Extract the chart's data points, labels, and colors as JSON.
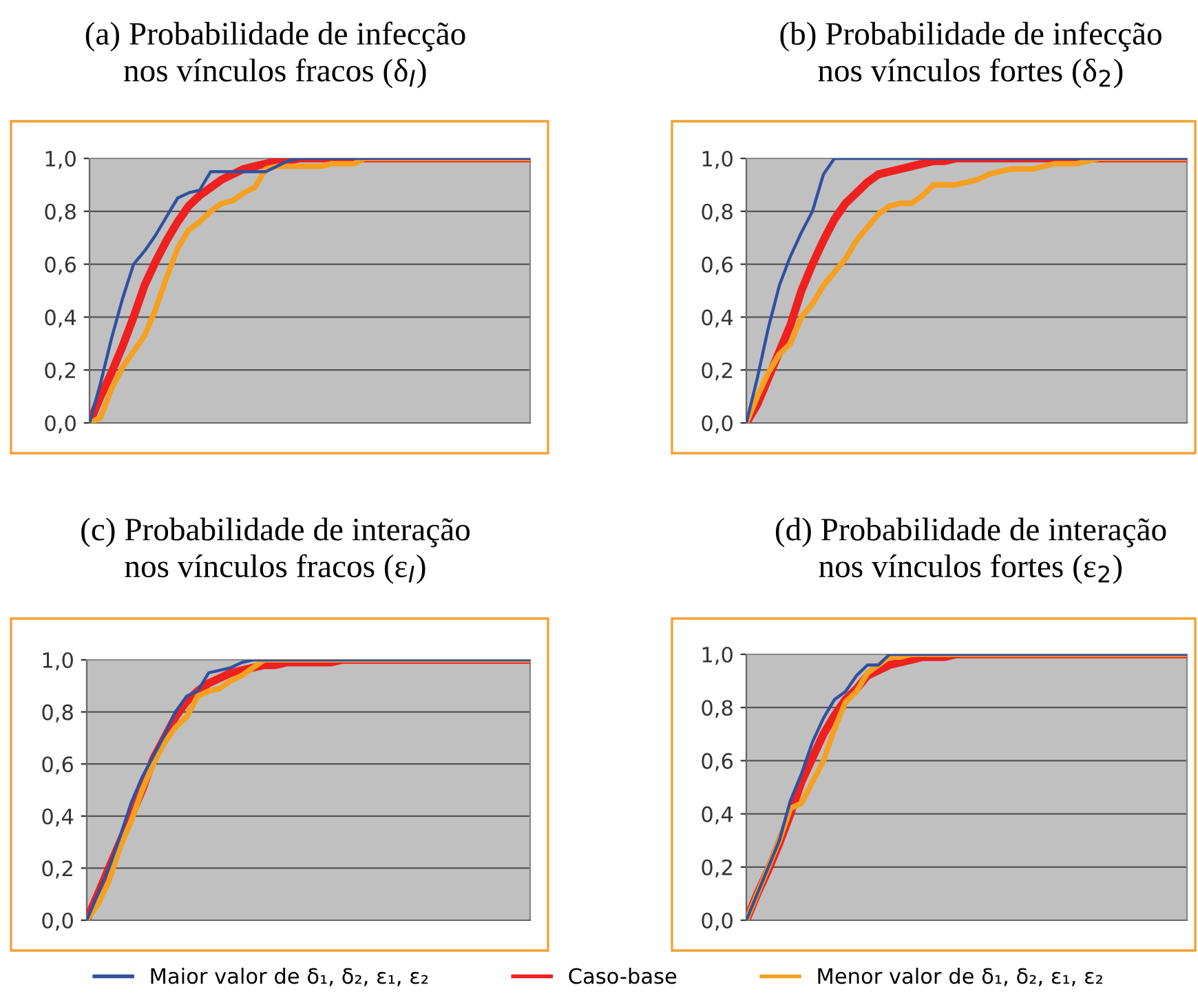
{
  "chart_data": [
    {
      "type": "line",
      "title": "(a) Probabilidade de infecção\nnos vínculos fracos (δ$_{I}$)",
      "categories": [
        null,
        null,
        null,
        null,
        null,
        null,
        null,
        null,
        null,
        null,
        null,
        null,
        null,
        null,
        null,
        null,
        null,
        null,
        null,
        null,
        null,
        null,
        null,
        null,
        null,
        null,
        null,
        null,
        null,
        null,
        null,
        null,
        null,
        null,
        null,
        null,
        null,
        null,
        null,
        null,
        null
      ],
      "ylim": [
        0,
        1
      ],
      "yticks": [
        {
          "value": 0,
          "label": "0,0"
        },
        {
          "value": 0.2,
          "label": "0,2"
        },
        {
          "value": 0.4,
          "label": "0,4"
        },
        {
          "value": 0.6,
          "label": "0,6"
        },
        {
          "value": 0.8,
          "label": "0,8"
        },
        {
          "value": 1,
          "label": "1,0"
        }
      ],
      "grid": "y",
      "tick_labels": "y",
      "marker": "none",
      "line_style": "solid",
      "legend": "bottom",
      "series": [
        {
          "name": "Maior valor de δ₁, δ₂, ε₁, ε₂",
          "color": "#3050a0",
          "values": [
            0,
            0.15,
            0.32,
            0.47,
            0.6,
            0.65,
            0.71,
            0.78,
            0.85,
            0.87,
            0.88,
            0.95,
            0.95,
            0.95,
            0.95,
            0.95,
            0.95,
            0.97,
            0.99,
            1,
            1,
            1,
            1,
            1,
            1,
            1,
            1,
            1,
            1,
            1,
            1,
            1,
            1,
            1,
            1,
            1,
            1,
            1,
            1,
            1,
            1
          ]
        },
        {
          "name": "Caso-base",
          "color": "#ee2020",
          "values": [
            0,
            0.1,
            0.19,
            0.29,
            0.4,
            0.52,
            0.61,
            0.69,
            0.76,
            0.82,
            0.86,
            0.89,
            0.92,
            0.94,
            0.96,
            0.97,
            0.98,
            0.99,
            0.99,
            1,
            1,
            1,
            1,
            1,
            1,
            1,
            1,
            1,
            1,
            1,
            1,
            1,
            1,
            1,
            1,
            1,
            1,
            1,
            1,
            1,
            1
          ]
        },
        {
          "name": "Menor valor de δ₁, δ₂, ε₁, ε₂",
          "color": "#f5a020",
          "values": [
            0,
            0.02,
            0.13,
            0.21,
            0.27,
            0.33,
            0.43,
            0.55,
            0.66,
            0.73,
            0.76,
            0.8,
            0.83,
            0.84,
            0.87,
            0.89,
            0.96,
            0.97,
            0.97,
            0.97,
            0.97,
            0.97,
            0.98,
            0.98,
            0.98,
            1,
            1,
            1,
            1,
            1,
            1,
            1,
            1,
            1,
            1,
            1,
            1,
            1,
            1,
            1,
            1
          ]
        }
      ]
    },
    {
      "type": "line",
      "title": "(b) Probabilidade de infecção\nnos vínculos fortes (δ$_{2}$)",
      "categories": [
        null,
        null,
        null,
        null,
        null,
        null,
        null,
        null,
        null,
        null,
        null,
        null,
        null,
        null,
        null,
        null,
        null,
        null,
        null,
        null,
        null,
        null,
        null,
        null,
        null,
        null,
        null,
        null,
        null,
        null,
        null,
        null,
        null,
        null,
        null,
        null,
        null,
        null,
        null,
        null,
        null
      ],
      "ylim": [
        0,
        1
      ],
      "yticks": [
        {
          "value": 0,
          "label": "0,0"
        },
        {
          "value": 0.2,
          "label": "0,2"
        },
        {
          "value": 0.4,
          "label": "0,4"
        },
        {
          "value": 0.6,
          "label": "0,6"
        },
        {
          "value": 0.8,
          "label": "0,8"
        },
        {
          "value": 1,
          "label": "1,0"
        }
      ],
      "grid": "y",
      "tick_labels": "y",
      "marker": "none",
      "line_style": "solid",
      "series": [
        {
          "color": "#3050a0",
          "values": [
            0,
            0.17,
            0.36,
            0.52,
            0.63,
            0.72,
            0.8,
            0.94,
            1,
            1,
            1,
            1,
            1,
            1,
            1,
            1,
            1,
            1,
            1,
            1,
            1,
            1,
            1,
            1,
            1,
            1,
            1,
            1,
            1,
            1,
            1,
            1,
            1,
            1,
            1,
            1,
            1,
            1,
            1,
            1,
            1
          ]
        },
        {
          "color": "#ee2020",
          "values": [
            0,
            0.07,
            0.17,
            0.27,
            0.37,
            0.5,
            0.6,
            0.69,
            0.77,
            0.83,
            0.87,
            0.91,
            0.94,
            0.95,
            0.96,
            0.97,
            0.98,
            0.99,
            0.99,
            1,
            1,
            1,
            1,
            1,
            1,
            1,
            1,
            1,
            1,
            1,
            1,
            1,
            1,
            1,
            1,
            1,
            1,
            1,
            1,
            1,
            1
          ]
        },
        {
          "color": "#f5a020",
          "values": [
            0,
            0.1,
            0.19,
            0.26,
            0.3,
            0.4,
            0.45,
            0.52,
            0.57,
            0.62,
            0.69,
            0.74,
            0.79,
            0.82,
            0.83,
            0.83,
            0.86,
            0.9,
            0.9,
            0.9,
            0.91,
            0.92,
            0.94,
            0.95,
            0.96,
            0.96,
            0.96,
            0.97,
            0.98,
            0.98,
            0.98,
            0.99,
            1,
            1,
            1,
            1,
            1,
            1,
            1,
            1,
            1
          ]
        }
      ]
    },
    {
      "type": "line",
      "title": "(c) Probabilidade de interação\nnos vínculos fracos (ε$_{I}$)",
      "categories": [
        null,
        null,
        null,
        null,
        null,
        null,
        null,
        null,
        null,
        null,
        null,
        null,
        null,
        null,
        null,
        null,
        null,
        null,
        null,
        null,
        null,
        null,
        null,
        null,
        null,
        null,
        null,
        null,
        null,
        null,
        null,
        null,
        null,
        null,
        null,
        null,
        null,
        null,
        null,
        null,
        null
      ],
      "ylim": [
        0,
        1
      ],
      "yticks": [
        {
          "value": 0,
          "label": "0,0"
        },
        {
          "value": 0.2,
          "label": "0,2"
        },
        {
          "value": 0.4,
          "label": "0,4"
        },
        {
          "value": 0.6,
          "label": "0,6"
        },
        {
          "value": 0.8,
          "label": "0,8"
        },
        {
          "value": 1,
          "label": "1,0"
        }
      ],
      "grid": "y",
      "tick_labels": "y",
      "marker": "none",
      "line_style": "solid",
      "series": [
        {
          "color": "#3050a0",
          "values": [
            0,
            0.1,
            0.2,
            0.32,
            0.45,
            0.55,
            0.63,
            0.71,
            0.8,
            0.86,
            0.88,
            0.95,
            0.96,
            0.97,
            0.99,
            1,
            1,
            1,
            1,
            1,
            1,
            1,
            1,
            1,
            1,
            1,
            1,
            1,
            1,
            1,
            1,
            1,
            1,
            1,
            1,
            1,
            1,
            1,
            1,
            1,
            1
          ]
        },
        {
          "color": "#ee2020",
          "values": [
            0,
            0.1,
            0.2,
            0.3,
            0.4,
            0.5,
            0.62,
            0.7,
            0.78,
            0.84,
            0.88,
            0.91,
            0.93,
            0.95,
            0.96,
            0.97,
            0.98,
            0.98,
            0.99,
            0.99,
            0.99,
            0.99,
            0.99,
            1,
            1,
            1,
            1,
            1,
            1,
            1,
            1,
            1,
            1,
            1,
            1,
            1,
            1,
            1,
            1,
            1,
            1
          ]
        },
        {
          "color": "#f5a020",
          "values": [
            0,
            0.06,
            0.15,
            0.28,
            0.38,
            0.5,
            0.6,
            0.68,
            0.74,
            0.78,
            0.86,
            0.88,
            0.89,
            0.92,
            0.94,
            0.97,
            1,
            1,
            1,
            1,
            1,
            1,
            1,
            1,
            1,
            1,
            1,
            1,
            1,
            1,
            1,
            1,
            1,
            1,
            1,
            1,
            1,
            1,
            1,
            1,
            1
          ]
        }
      ]
    },
    {
      "type": "line",
      "title": "(d) Probabilidade de interação\nnos vínculos fortes (ε$_{2}$)",
      "categories": [
        null,
        null,
        null,
        null,
        null,
        null,
        null,
        null,
        null,
        null,
        null,
        null,
        null,
        null,
        null,
        null,
        null,
        null,
        null,
        null,
        null,
        null,
        null,
        null,
        null,
        null,
        null,
        null,
        null,
        null,
        null,
        null,
        null,
        null,
        null,
        null,
        null,
        null,
        null,
        null,
        null
      ],
      "ylim": [
        0,
        1
      ],
      "yticks": [
        {
          "value": 0,
          "label": "0,0"
        },
        {
          "value": 0.2,
          "label": "0,2"
        },
        {
          "value": 0.4,
          "label": "0,4"
        },
        {
          "value": 0.6,
          "label": "0,6"
        },
        {
          "value": 0.8,
          "label": "0,8"
        },
        {
          "value": 1,
          "label": "1,0"
        }
      ],
      "grid": "y",
      "tick_labels": "y",
      "marker": "none",
      "line_style": "solid",
      "series": [
        {
          "color": "#3050a0",
          "values": [
            0,
            0.1,
            0.2,
            0.3,
            0.45,
            0.55,
            0.67,
            0.76,
            0.83,
            0.86,
            0.92,
            0.96,
            0.96,
            1,
            1,
            1,
            1,
            1,
            1,
            1,
            1,
            1,
            1,
            1,
            1,
            1,
            1,
            1,
            1,
            1,
            1,
            1,
            1,
            1,
            1,
            1,
            1,
            1,
            1,
            1,
            1
          ]
        },
        {
          "color": "#ee2020",
          "values": [
            0,
            0.1,
            0.19,
            0.29,
            0.4,
            0.52,
            0.61,
            0.7,
            0.77,
            0.83,
            0.87,
            0.92,
            0.94,
            0.96,
            0.97,
            0.98,
            0.99,
            0.99,
            0.99,
            1,
            1,
            1,
            1,
            1,
            1,
            1,
            1,
            1,
            1,
            1,
            1,
            1,
            1,
            1,
            1,
            1,
            1,
            1,
            1,
            1,
            1
          ]
        },
        {
          "color": "#f5a020",
          "values": [
            0,
            0.1,
            0.2,
            0.3,
            0.42,
            0.44,
            0.52,
            0.6,
            0.72,
            0.82,
            0.86,
            0.93,
            0.96,
            0.99,
            0.99,
            1,
            1,
            1,
            1,
            1,
            1,
            1,
            1,
            1,
            1,
            1,
            1,
            1,
            1,
            1,
            1,
            1,
            1,
            1,
            1,
            1,
            1,
            1,
            1,
            1,
            1
          ]
        }
      ]
    }
  ]
}
